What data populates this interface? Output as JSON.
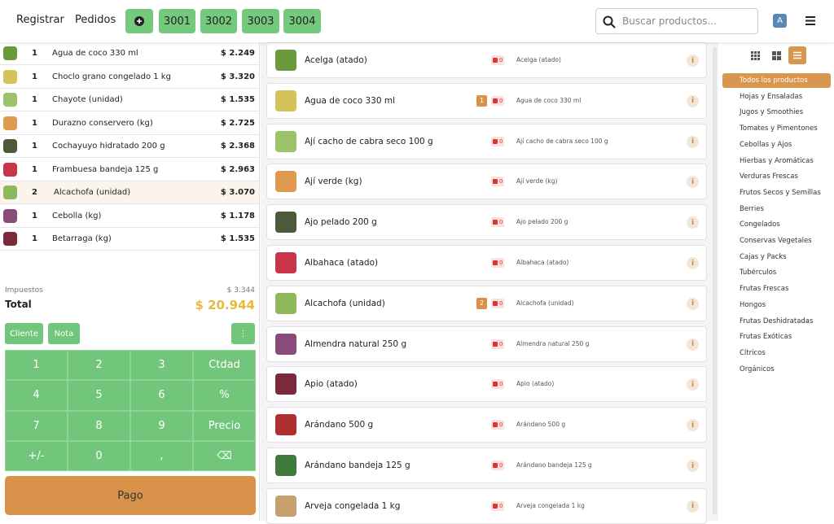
{
  "header": {
    "nav": [
      "Registrar",
      "Pedidos"
    ],
    "orders": [
      "3001",
      "3002",
      "3003",
      "3004"
    ],
    "search_placeholder": "Buscar productos...",
    "avatar": "A"
  },
  "order": {
    "lines": [
      {
        "qty": "1",
        "name": "Agua de coco 330 ml",
        "price": "$ 2.249"
      },
      {
        "qty": "1",
        "name": "Choclo grano congelado 1 kg",
        "price": "$ 3.320"
      },
      {
        "qty": "1",
        "name": "Chayote (unidad)",
        "price": "$ 1.535"
      },
      {
        "qty": "1",
        "name": "Durazno conservero (kg)",
        "price": "$ 2.725"
      },
      {
        "qty": "1",
        "name": "Cochayuyo hidratado 200 g",
        "price": "$ 2.368"
      },
      {
        "qty": "1",
        "name": "Frambuesa bandeja 125 g",
        "price": "$ 2.963"
      },
      {
        "qty": "2",
        "name": "Alcachofa (unidad)",
        "price": "$ 3.070"
      },
      {
        "qty": "1",
        "name": "Cebolla (kg)",
        "price": "$ 1.178"
      },
      {
        "qty": "1",
        "name": "Betarraga (kg)",
        "price": "$ 1.535"
      }
    ],
    "taxes_label": "Impuestos",
    "taxes": "$ 3.344",
    "total_label": "Total",
    "total": "$ 20.944",
    "buttons": [
      "Cliente",
      "Nota"
    ],
    "keypad": [
      [
        "1",
        "2",
        "3",
        "Ctdad"
      ],
      [
        "4",
        "5",
        "6",
        "%"
      ],
      [
        "7",
        "8",
        "9",
        "Precio"
      ],
      [
        "+/-",
        "0",
        ",",
        "⌫"
      ]
    ],
    "pay": "Pago"
  },
  "products": [
    {
      "name": "Acelga (atado)",
      "stock": "0"
    },
    {
      "name": "Agua de coco 330 ml",
      "stock": "0",
      "badge": "1"
    },
    {
      "name": "Ají cacho de cabra seco 100 g",
      "stock": "0"
    },
    {
      "name": "Ají verde (kg)",
      "stock": "0"
    },
    {
      "name": "Ajo pelado 200 g",
      "stock": "0"
    },
    {
      "name": "Albahaca (atado)",
      "stock": "0"
    },
    {
      "name": "Alcachofa (unidad)",
      "stock": "0",
      "badge": "2"
    },
    {
      "name": "Almendra natural 250 g",
      "stock": "0"
    },
    {
      "name": "Apio (atado)",
      "stock": "0"
    },
    {
      "name": "Arándano 500 g",
      "stock": "0"
    },
    {
      "name": "Arándano bandeja 125 g",
      "stock": "0"
    },
    {
      "name": "Arveja congelada 1 kg",
      "stock": "0"
    }
  ],
  "categories": [
    "Todos los productos",
    "Hojas y Ensaladas",
    "Jugos y Smoothies",
    "Tomates y Pimentones",
    "Cebollas y Ajos",
    "Hierbas y Aromáticas",
    "Verduras Frescas",
    "Frutos Secos y Semillas",
    "Berries",
    "Congelados",
    "Conservas Vegetales",
    "Cajas y Packs",
    "Tubérculos",
    "Frutas Frescas",
    "Hongos",
    "Frutas Deshidratadas",
    "Frutas Exóticas",
    "Cítricos",
    "Orgánicos"
  ]
}
